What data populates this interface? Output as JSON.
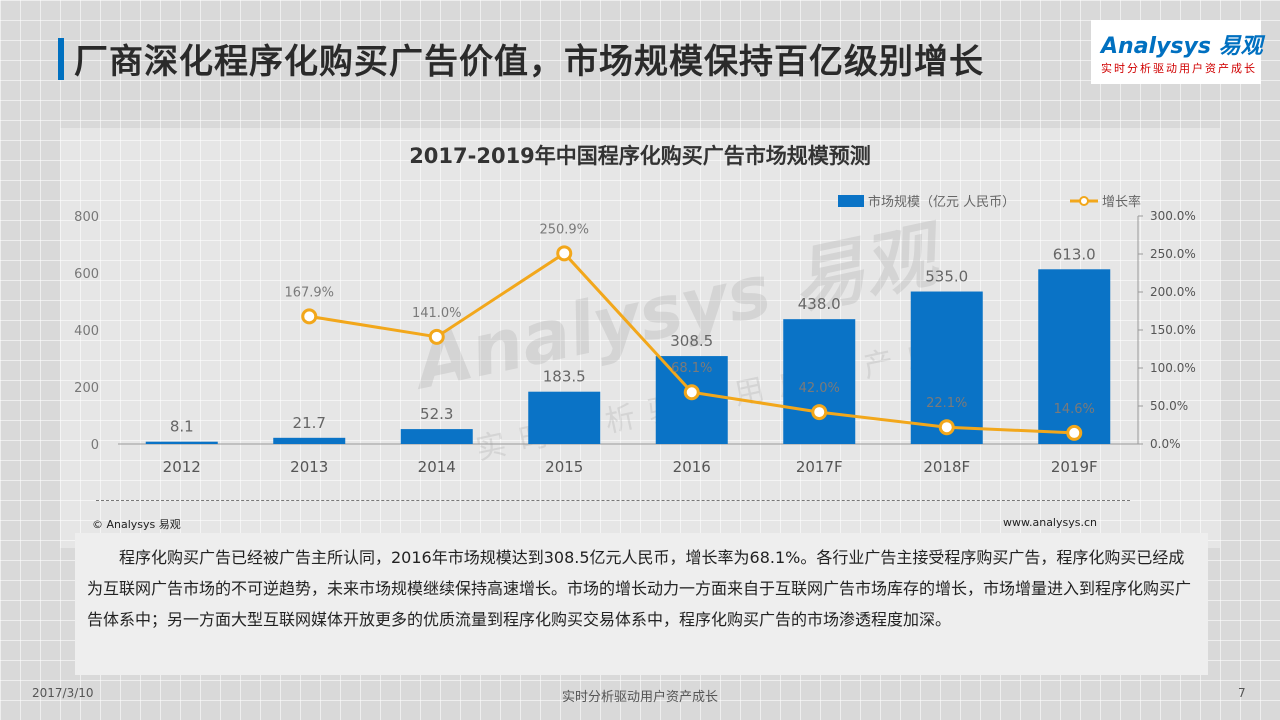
{
  "page": {
    "title": "厂商深化程序化购买广告价值，市场规模保持百亿级别增长"
  },
  "logo": {
    "brand": "Analysys 易观",
    "slogan": "实时分析驱动用户资产成长"
  },
  "watermark": {
    "brand": "Analysys 易观",
    "slogan": "实时分析驱动用户资产成长"
  },
  "chart_data": {
    "type": "bar",
    "title": "2017-2019年中国程序化购买广告市场规模预测",
    "categories": [
      "2012",
      "2013",
      "2014",
      "2015",
      "2016",
      "2017F",
      "2018F",
      "2019F"
    ],
    "series": [
      {
        "name": "市场规模（亿元 人民币）",
        "type": "bar",
        "axis": "left",
        "values": [
          8.1,
          21.7,
          52.3,
          183.5,
          308.5,
          438.0,
          535.0,
          613.0
        ],
        "labels": [
          "8.1",
          "21.7",
          "52.3",
          "183.5",
          "308.5",
          "438.0",
          "535.0",
          "613.0"
        ],
        "color": "#0a73c6"
      },
      {
        "name": "增长率",
        "type": "line",
        "axis": "right",
        "values": [
          null,
          167.9,
          141.0,
          250.9,
          68.1,
          42.0,
          22.1,
          14.6
        ],
        "labels": [
          "",
          "167.9%",
          "141.0%",
          "250.9%",
          "68.1%",
          "42.0%",
          "22.1%",
          "14.6%"
        ],
        "color": "#f2a71b"
      }
    ],
    "y_left": {
      "min": 0,
      "max": 800,
      "ticks": [
        0,
        200,
        400,
        600,
        800
      ],
      "tick_labels": [
        "0",
        "200",
        "400",
        "600",
        "800"
      ]
    },
    "y_right": {
      "min": 0,
      "max": 300,
      "ticks": [
        0,
        50,
        100,
        150,
        200,
        250,
        300
      ],
      "tick_labels": [
        "0.0%",
        "50.0%",
        "100.0%",
        "150.0%",
        "200.0%",
        "250.0%",
        "300.0%"
      ]
    },
    "legend": "top-right",
    "grid": false
  },
  "source": {
    "copyright": "© Analysys 易观",
    "website": "www.analysys.cn"
  },
  "description": "程序化购买广告已经被广告主所认同，2016年市场规模达到308.5亿元人民币，增长率为68.1%。各行业广告主接受程序购买广告，程序化购买已经成为互联网广告市场的不可逆趋势，未来市场规模继续保持高速增长。市场的增长动力一方面来自于互联网广告市场库存的增长，市场增量进入到程序化购买广告体系中；另一方面大型互联网媒体开放更多的优质流量到程序化购买交易体系中，程序化购买广告的市场渗透程度加深。",
  "footer": {
    "date": "2017/3/10",
    "tagline": "实时分析驱动用户资产成长",
    "page_number": "7"
  }
}
